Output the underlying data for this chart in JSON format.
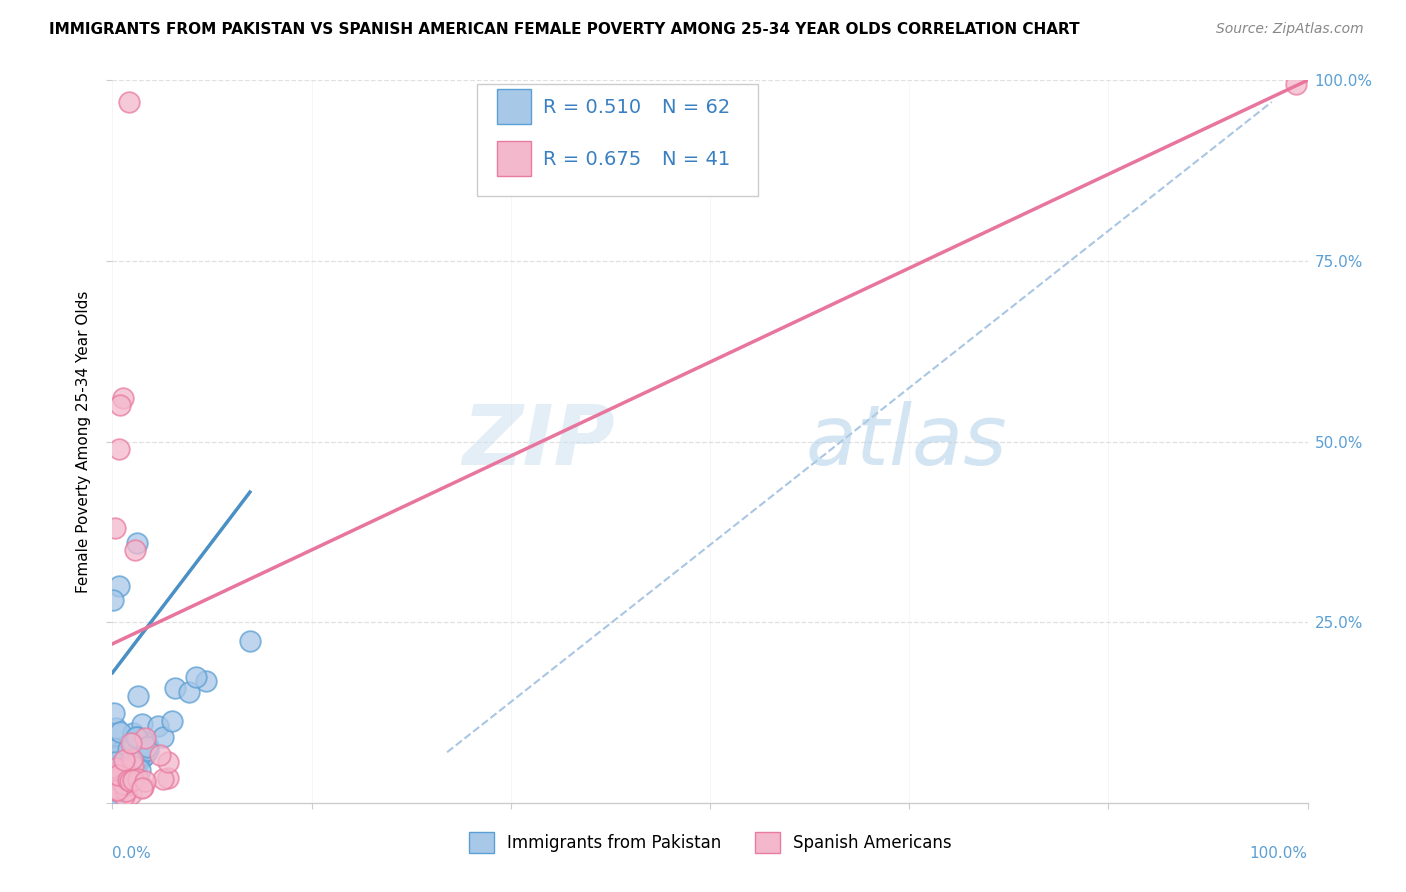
{
  "title": "IMMIGRANTS FROM PAKISTAN VS SPANISH AMERICAN FEMALE POVERTY AMONG 25-34 YEAR OLDS CORRELATION CHART",
  "source": "Source: ZipAtlas.com",
  "ylabel": "Female Poverty Among 25-34 Year Olds",
  "series1_label": "Immigrants from Pakistan",
  "series1_face_color": "#a8c8e8",
  "series1_edge_color": "#5b9fd4",
  "series1_R": "0.510",
  "series1_N": "62",
  "series2_label": "Spanish Americans",
  "series2_face_color": "#f4b8cc",
  "series2_edge_color": "#e87ca0",
  "series2_R": "0.675",
  "series2_N": "41",
  "trend1_color": "#4a90c4",
  "trend2_color": "#e8759e",
  "dash_line_color": "#a0c0e0",
  "watermark": "ZIPatlas",
  "background_color": "#ffffff",
  "grid_color": "#e0e0e0",
  "tick_color": "#5b9fd4",
  "legend_text_color": "#3a80c0",
  "title_fontsize": 11,
  "source_fontsize": 10,
  "tick_fontsize": 11,
  "legend_fontsize": 14
}
